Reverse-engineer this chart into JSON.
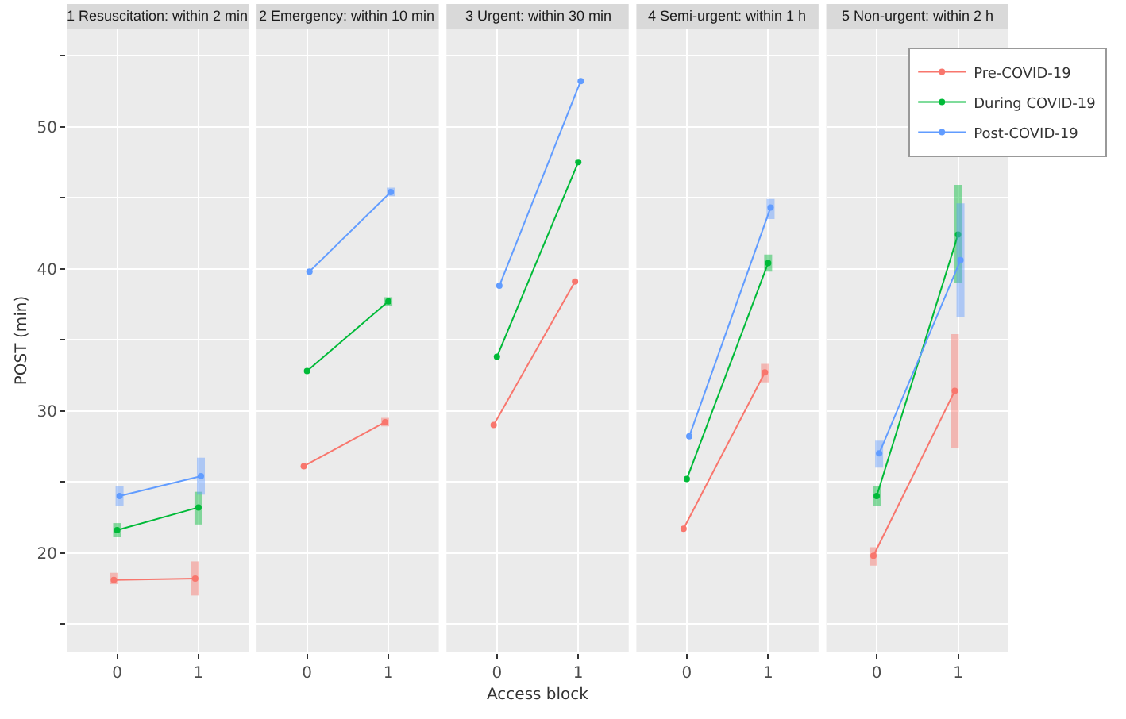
{
  "chart_data": [
    {
      "type": "line",
      "title": "1 Resuscitation: within 2 min",
      "ylabel": "POST (min)",
      "xlim": [
        -0.62,
        1.62
      ],
      "xticks": [
        0,
        1
      ],
      "ylim": [
        13,
        56.9
      ],
      "yticks": [
        {
          "value": 15,
          "label": null
        },
        20,
        {
          "value": 25,
          "label": null
        },
        30,
        {
          "value": 35,
          "label": null
        },
        40,
        {
          "value": 45,
          "label": null
        },
        50,
        {
          "value": 55,
          "label": null
        }
      ],
      "grid": true,
      "marker": "circle",
      "series": [
        {
          "color": "#f8766d",
          "x": [
            -0.04,
            0.96
          ],
          "values": [
            18.1,
            18.2
          ],
          "errors": [
            [
              17.8,
              18.6
            ],
            [
              17.0,
              19.4
            ]
          ]
        },
        {
          "color": "#00ba38",
          "x": [
            0,
            1
          ],
          "values": [
            21.6,
            23.2
          ],
          "errors": [
            [
              21.1,
              22.1
            ],
            [
              22.0,
              24.3
            ]
          ]
        },
        {
          "color": "#619cff",
          "x": [
            0.03,
            1.03
          ],
          "values": [
            24.0,
            25.4
          ],
          "errors": [
            [
              23.3,
              24.7
            ],
            [
              24.1,
              26.7
            ]
          ]
        }
      ]
    },
    {
      "type": "line",
      "title": "2 Emergency: within 10 min",
      "xlim": [
        -0.62,
        1.62
      ],
      "xticks": [
        0,
        1
      ],
      "ylim": [
        13,
        56.9
      ],
      "yticks": [
        {
          "value": 15,
          "label": null
        },
        20,
        {
          "value": 25,
          "label": null
        },
        30,
        {
          "value": 35,
          "label": null
        },
        40,
        {
          "value": 45,
          "label": null
        },
        50,
        {
          "value": 55,
          "label": null
        }
      ],
      "grid": true,
      "marker": "circle",
      "tick_labels": "x",
      "series": [
        {
          "color": "#f8766d",
          "x": [
            -0.04,
            0.96
          ],
          "values": [
            26.1,
            29.2
          ],
          "errors": [
            null,
            [
              28.9,
              29.5
            ]
          ]
        },
        {
          "color": "#00ba38",
          "x": [
            0,
            1
          ],
          "values": [
            32.8,
            37.7
          ],
          "errors": [
            null,
            [
              37.4,
              38.0
            ]
          ]
        },
        {
          "color": "#619cff",
          "x": [
            0.03,
            1.03
          ],
          "values": [
            39.8,
            45.4
          ],
          "errors": [
            null,
            [
              45.1,
              45.7
            ]
          ]
        }
      ]
    },
    {
      "type": "line",
      "title": "3 Urgent: within 30 min",
      "xlabel": "Access block",
      "xlim": [
        -0.62,
        1.62
      ],
      "xticks": [
        0,
        1
      ],
      "ylim": [
        13,
        56.9
      ],
      "yticks": [
        {
          "value": 15,
          "label": null
        },
        20,
        {
          "value": 25,
          "label": null
        },
        30,
        {
          "value": 35,
          "label": null
        },
        40,
        {
          "value": 45,
          "label": null
        },
        50,
        {
          "value": 55,
          "label": null
        }
      ],
      "grid": true,
      "marker": "circle",
      "tick_labels": "x",
      "series": [
        {
          "color": "#f8766d",
          "x": [
            -0.04,
            0.96
          ],
          "values": [
            29.0,
            39.1
          ]
        },
        {
          "color": "#00ba38",
          "x": [
            0,
            1
          ],
          "values": [
            33.8,
            47.5
          ]
        },
        {
          "color": "#619cff",
          "x": [
            0.03,
            1.03
          ],
          "values": [
            38.8,
            53.2
          ]
        }
      ]
    },
    {
      "type": "line",
      "title": "4 Semi-urgent: within 1 h",
      "xlim": [
        -0.62,
        1.62
      ],
      "xticks": [
        0,
        1
      ],
      "ylim": [
        13,
        56.9
      ],
      "yticks": [
        {
          "value": 15,
          "label": null
        },
        20,
        {
          "value": 25,
          "label": null
        },
        30,
        {
          "value": 35,
          "label": null
        },
        40,
        {
          "value": 45,
          "label": null
        },
        50,
        {
          "value": 55,
          "label": null
        }
      ],
      "grid": true,
      "marker": "circle",
      "tick_labels": "x",
      "series": [
        {
          "color": "#f8766d",
          "x": [
            -0.04,
            0.96
          ],
          "values": [
            21.7,
            32.7
          ],
          "errors": [
            null,
            [
              32.0,
              33.3
            ]
          ]
        },
        {
          "color": "#00ba38",
          "x": [
            0,
            1
          ],
          "values": [
            25.2,
            40.4
          ],
          "errors": [
            null,
            [
              39.8,
              41.0
            ]
          ]
        },
        {
          "color": "#619cff",
          "x": [
            0.03,
            1.03
          ],
          "values": [
            28.2,
            44.3
          ],
          "errors": [
            null,
            [
              43.5,
              44.9
            ]
          ]
        }
      ]
    },
    {
      "type": "line",
      "title": "5 Non-urgent: within 2 h",
      "xlim": [
        -0.62,
        1.62
      ],
      "xticks": [
        0,
        1
      ],
      "ylim": [
        13,
        56.9
      ],
      "yticks": [
        {
          "value": 15,
          "label": null
        },
        20,
        {
          "value": 25,
          "label": null
        },
        30,
        {
          "value": 35,
          "label": null
        },
        40,
        {
          "value": 45,
          "label": null
        },
        50,
        {
          "value": 55,
          "label": null
        }
      ],
      "grid": true,
      "marker": "circle",
      "tick_labels": "x",
      "legend": "top right",
      "series": [
        {
          "name": "Pre-COVID-19",
          "color": "#f8766d",
          "x": [
            -0.04,
            0.96
          ],
          "values": [
            19.8,
            31.4
          ],
          "errors": [
            [
              19.1,
              20.4
            ],
            [
              27.4,
              35.4
            ]
          ]
        },
        {
          "name": "During COVID-19",
          "color": "#00ba38",
          "x": [
            0,
            1
          ],
          "values": [
            24.0,
            42.4
          ],
          "errors": [
            [
              23.3,
              24.7
            ],
            [
              39.0,
              45.9
            ]
          ]
        },
        {
          "name": "Post-COVID-19",
          "color": "#619cff",
          "x": [
            0.03,
            1.03
          ],
          "values": [
            27.0,
            40.6
          ],
          "errors": [
            [
              26.0,
              27.9
            ],
            [
              36.6,
              44.6
            ]
          ]
        }
      ]
    }
  ]
}
